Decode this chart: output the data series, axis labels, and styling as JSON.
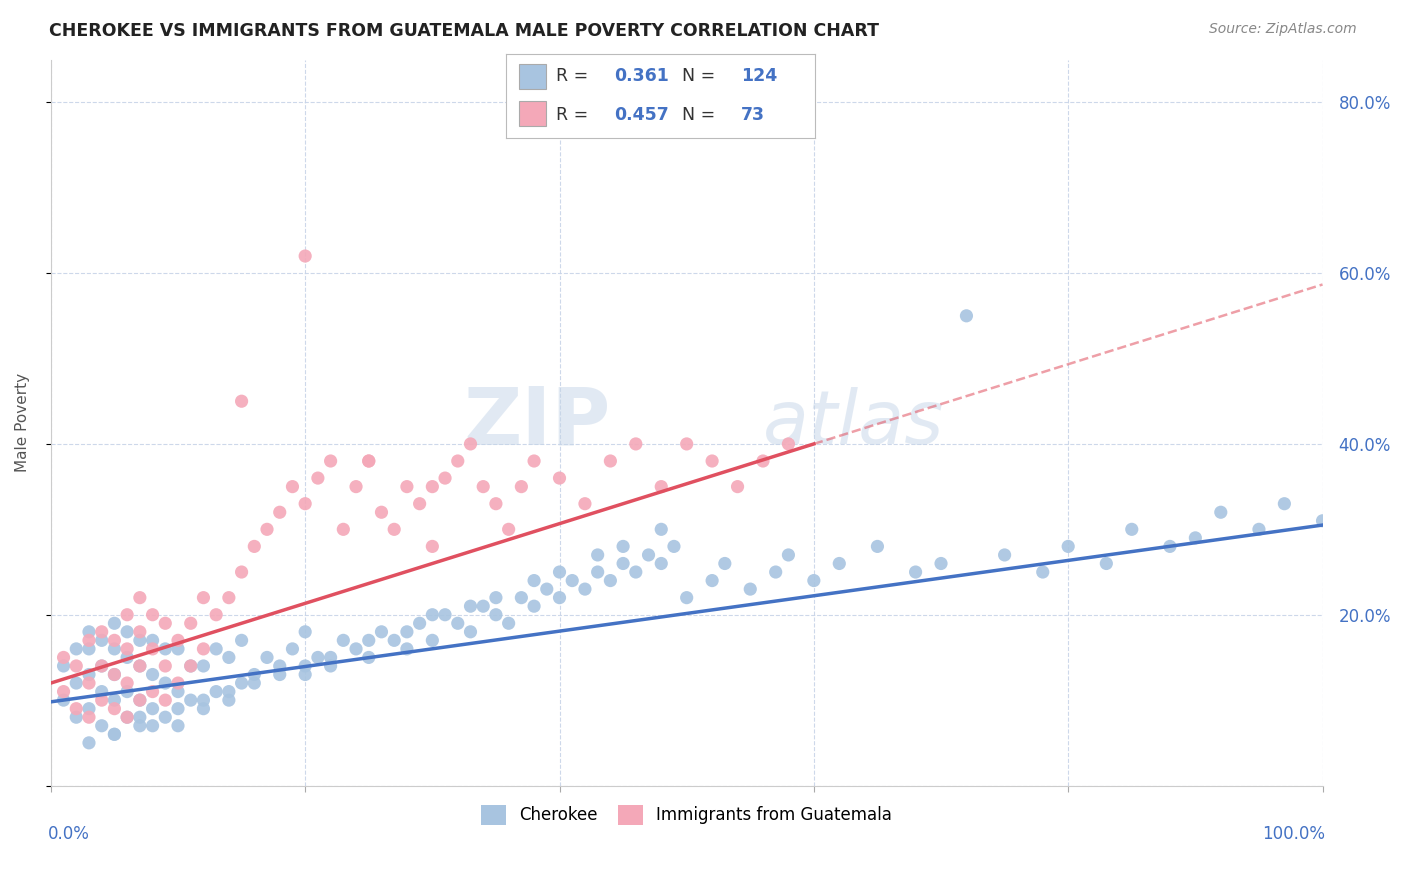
{
  "title": "CHEROKEE VS IMMIGRANTS FROM GUATEMALA MALE POVERTY CORRELATION CHART",
  "source": "Source: ZipAtlas.com",
  "ylabel": "Male Poverty",
  "xlim": [
    0.0,
    1.0
  ],
  "ylim": [
    0.0,
    0.85
  ],
  "blue_color": "#a8c4e0",
  "pink_color": "#f4a8b8",
  "blue_line_color": "#4472c4",
  "pink_line_color": "#e05060",
  "legend_R1": "0.361",
  "legend_N1": "124",
  "legend_R2": "0.457",
  "legend_N2": "73",
  "watermark_zip": "ZIP",
  "watermark_atlas": "atlas",
  "background_color": "#ffffff",
  "grid_color": "#c8d4e8",
  "blue_scatter_x": [
    0.01,
    0.01,
    0.02,
    0.02,
    0.02,
    0.03,
    0.03,
    0.03,
    0.03,
    0.04,
    0.04,
    0.04,
    0.04,
    0.05,
    0.05,
    0.05,
    0.05,
    0.05,
    0.06,
    0.06,
    0.06,
    0.06,
    0.07,
    0.07,
    0.07,
    0.07,
    0.08,
    0.08,
    0.08,
    0.09,
    0.09,
    0.09,
    0.1,
    0.1,
    0.1,
    0.11,
    0.11,
    0.12,
    0.12,
    0.13,
    0.13,
    0.14,
    0.14,
    0.15,
    0.15,
    0.16,
    0.17,
    0.18,
    0.19,
    0.2,
    0.2,
    0.21,
    0.22,
    0.23,
    0.24,
    0.25,
    0.26,
    0.27,
    0.28,
    0.29,
    0.3,
    0.31,
    0.32,
    0.33,
    0.34,
    0.35,
    0.36,
    0.37,
    0.38,
    0.39,
    0.4,
    0.41,
    0.42,
    0.43,
    0.44,
    0.45,
    0.46,
    0.47,
    0.48,
    0.49,
    0.5,
    0.52,
    0.53,
    0.55,
    0.57,
    0.58,
    0.6,
    0.62,
    0.65,
    0.68,
    0.7,
    0.72,
    0.75,
    0.78,
    0.8,
    0.83,
    0.85,
    0.88,
    0.9,
    0.92,
    0.95,
    0.97,
    1.0,
    0.03,
    0.05,
    0.07,
    0.08,
    0.1,
    0.12,
    0.14,
    0.16,
    0.18,
    0.2,
    0.22,
    0.25,
    0.28,
    0.3,
    0.33,
    0.35,
    0.38,
    0.4,
    0.43,
    0.45,
    0.48
  ],
  "blue_scatter_y": [
    0.1,
    0.14,
    0.08,
    0.12,
    0.16,
    0.09,
    0.13,
    0.16,
    0.18,
    0.07,
    0.11,
    0.14,
    0.17,
    0.06,
    0.1,
    0.13,
    0.16,
    0.19,
    0.08,
    0.11,
    0.15,
    0.18,
    0.07,
    0.1,
    0.14,
    0.17,
    0.09,
    0.13,
    0.17,
    0.08,
    0.12,
    0.16,
    0.07,
    0.11,
    0.16,
    0.1,
    0.14,
    0.09,
    0.14,
    0.11,
    0.16,
    0.1,
    0.15,
    0.12,
    0.17,
    0.13,
    0.15,
    0.14,
    0.16,
    0.13,
    0.18,
    0.15,
    0.14,
    0.17,
    0.16,
    0.15,
    0.18,
    0.17,
    0.16,
    0.19,
    0.17,
    0.2,
    0.19,
    0.18,
    0.21,
    0.2,
    0.19,
    0.22,
    0.21,
    0.23,
    0.22,
    0.24,
    0.23,
    0.25,
    0.24,
    0.26,
    0.25,
    0.27,
    0.26,
    0.28,
    0.22,
    0.24,
    0.26,
    0.23,
    0.25,
    0.27,
    0.24,
    0.26,
    0.28,
    0.25,
    0.26,
    0.55,
    0.27,
    0.25,
    0.28,
    0.26,
    0.3,
    0.28,
    0.29,
    0.32,
    0.3,
    0.33,
    0.31,
    0.05,
    0.06,
    0.08,
    0.07,
    0.09,
    0.1,
    0.11,
    0.12,
    0.13,
    0.14,
    0.15,
    0.17,
    0.18,
    0.2,
    0.21,
    0.22,
    0.24,
    0.25,
    0.27,
    0.28,
    0.3
  ],
  "pink_scatter_x": [
    0.01,
    0.01,
    0.02,
    0.02,
    0.03,
    0.03,
    0.03,
    0.04,
    0.04,
    0.04,
    0.05,
    0.05,
    0.05,
    0.06,
    0.06,
    0.06,
    0.06,
    0.07,
    0.07,
    0.07,
    0.07,
    0.08,
    0.08,
    0.08,
    0.09,
    0.09,
    0.09,
    0.1,
    0.1,
    0.11,
    0.11,
    0.12,
    0.12,
    0.13,
    0.14,
    0.15,
    0.16,
    0.17,
    0.18,
    0.19,
    0.2,
    0.21,
    0.22,
    0.23,
    0.24,
    0.25,
    0.26,
    0.27,
    0.28,
    0.29,
    0.3,
    0.31,
    0.32,
    0.33,
    0.34,
    0.35,
    0.36,
    0.37,
    0.38,
    0.4,
    0.42,
    0.44,
    0.46,
    0.48,
    0.5,
    0.52,
    0.54,
    0.56,
    0.58,
    0.15,
    0.2,
    0.25,
    0.3
  ],
  "pink_scatter_y": [
    0.11,
    0.15,
    0.09,
    0.14,
    0.08,
    0.12,
    0.17,
    0.1,
    0.14,
    0.18,
    0.09,
    0.13,
    0.17,
    0.08,
    0.12,
    0.16,
    0.2,
    0.1,
    0.14,
    0.18,
    0.22,
    0.11,
    0.16,
    0.2,
    0.1,
    0.14,
    0.19,
    0.12,
    0.17,
    0.14,
    0.19,
    0.16,
    0.22,
    0.2,
    0.22,
    0.25,
    0.28,
    0.3,
    0.32,
    0.35,
    0.33,
    0.36,
    0.38,
    0.3,
    0.35,
    0.38,
    0.32,
    0.3,
    0.35,
    0.33,
    0.28,
    0.36,
    0.38,
    0.4,
    0.35,
    0.33,
    0.3,
    0.35,
    0.38,
    0.36,
    0.33,
    0.38,
    0.4,
    0.35,
    0.4,
    0.38,
    0.35,
    0.38,
    0.4,
    0.45,
    0.62,
    0.38,
    0.35
  ]
}
